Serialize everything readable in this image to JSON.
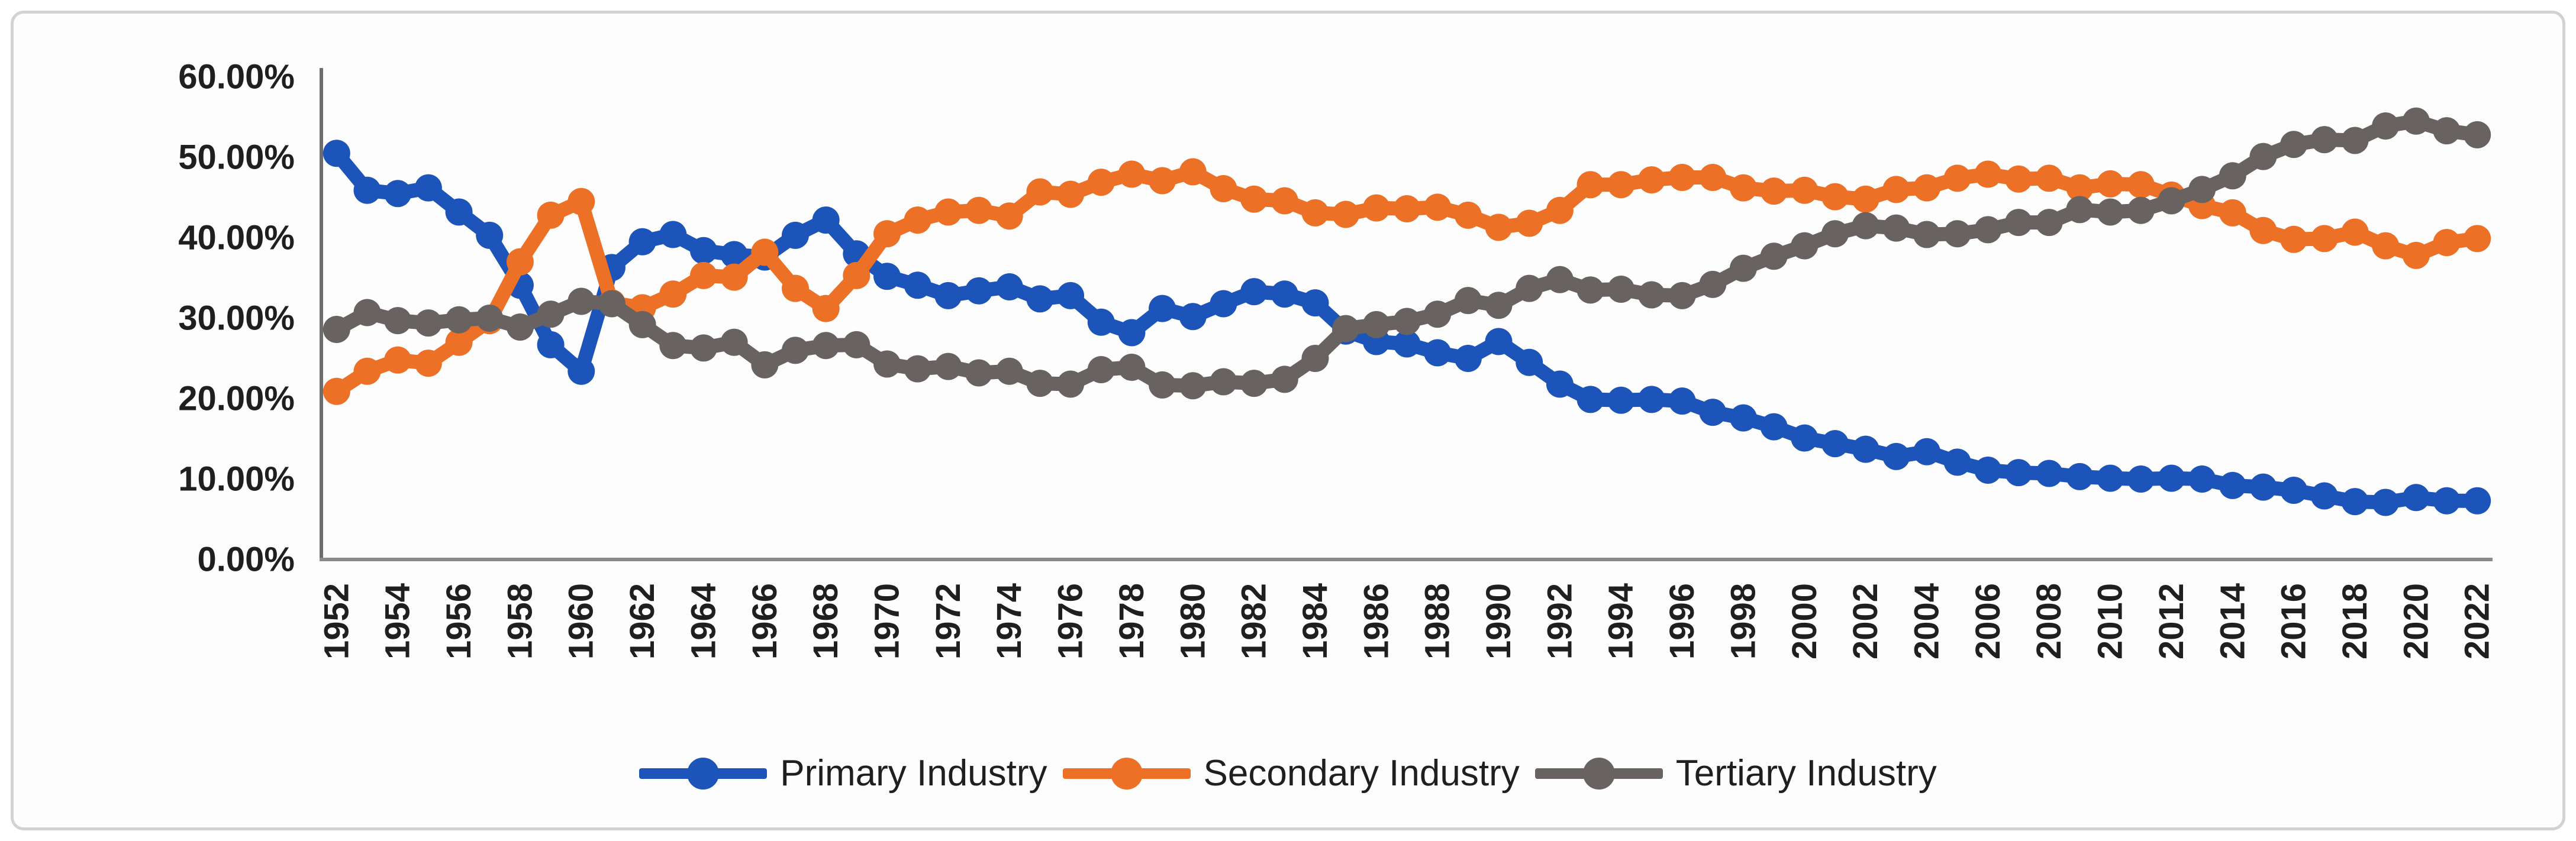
{
  "page": {
    "background": "#ffffff",
    "panel_border_color": "#d2d2d2",
    "panel_background": "#fdfdfd"
  },
  "chart_data": {
    "type": "line",
    "title": "",
    "xlabel": "",
    "ylabel": "",
    "ylim": [
      0,
      60
    ],
    "grid": false,
    "legend_position": "bottom-center",
    "marker_style": "filled-circle",
    "axis_color": "#8a8a8a",
    "y_axis_color": "#6e6e6e",
    "tick_text_color": "#1f1f1f",
    "years": [
      1952,
      1953,
      1954,
      1955,
      1956,
      1957,
      1958,
      1959,
      1960,
      1961,
      1962,
      1963,
      1964,
      1965,
      1966,
      1967,
      1968,
      1969,
      1970,
      1971,
      1972,
      1973,
      1974,
      1975,
      1976,
      1977,
      1978,
      1979,
      1980,
      1981,
      1982,
      1983,
      1984,
      1985,
      1986,
      1987,
      1988,
      1989,
      1990,
      1991,
      1992,
      1993,
      1994,
      1995,
      1996,
      1997,
      1998,
      1999,
      2000,
      2001,
      2002,
      2003,
      2004,
      2005,
      2006,
      2007,
      2008,
      2009,
      2010,
      2011,
      2012,
      2013,
      2014,
      2015,
      2016,
      2017,
      2018,
      2019,
      2020,
      2021,
      2022
    ],
    "x_tick_labels": [
      "1952",
      "1954",
      "1956",
      "1958",
      "1960",
      "1962",
      "1964",
      "1966",
      "1968",
      "1970",
      "1972",
      "1974",
      "1976",
      "1978",
      "1980",
      "1982",
      "1984",
      "1986",
      "1988",
      "1990",
      "1992",
      "1994",
      "1996",
      "1998",
      "2000",
      "2002",
      "2004",
      "2006",
      "2008",
      "2010",
      "2012",
      "2014",
      "2016",
      "2018",
      "2020",
      "2022"
    ],
    "y_ticks": [
      {
        "value": 60,
        "label": "60.00%"
      },
      {
        "value": 50,
        "label": "50.00%"
      },
      {
        "value": 40,
        "label": "40.00%"
      },
      {
        "value": 30,
        "label": "30.00%"
      },
      {
        "value": 20,
        "label": "20.00%"
      },
      {
        "value": 10,
        "label": "10.00%"
      },
      {
        "value": 0,
        "label": "0.00%"
      }
    ],
    "series": [
      {
        "name": "Primary Industry",
        "color": "#1c54ba",
        "values": [
          50.5,
          45.9,
          45.5,
          46.2,
          43.2,
          40.3,
          34.1,
          26.7,
          23.4,
          36.3,
          39.5,
          40.4,
          38.4,
          37.9,
          37.6,
          40.3,
          42.2,
          38.0,
          35.2,
          34.1,
          32.8,
          33.4,
          33.9,
          32.4,
          32.8,
          29.5,
          28.2,
          31.2,
          30.2,
          31.8,
          33.3,
          33.0,
          31.9,
          28.4,
          27.1,
          26.8,
          25.7,
          25.0,
          27.1,
          24.5,
          21.8,
          19.9,
          19.8,
          19.9,
          19.7,
          18.3,
          17.6,
          16.5,
          15.1,
          14.4,
          13.7,
          12.8,
          13.4,
          12.1,
          11.1,
          10.8,
          10.7,
          10.3,
          10.1,
          10.0,
          10.1,
          10.0,
          9.2,
          9.0,
          8.6,
          7.9,
          7.2,
          7.1,
          7.7,
          7.3,
          7.3
        ]
      },
      {
        "name": "Secondary Industry",
        "color": "#ec7127",
        "values": [
          20.9,
          23.4,
          24.8,
          24.4,
          27.0,
          29.7,
          37.0,
          42.8,
          44.5,
          31.9,
          31.3,
          33.0,
          35.3,
          35.1,
          38.2,
          33.7,
          31.2,
          35.3,
          40.5,
          42.2,
          43.2,
          43.4,
          42.7,
          45.7,
          45.4,
          46.9,
          47.9,
          47.1,
          48.2,
          46.1,
          44.8,
          44.6,
          43.1,
          42.9,
          43.7,
          43.6,
          43.8,
          42.8,
          41.3,
          41.8,
          43.4,
          46.6,
          46.6,
          47.2,
          47.5,
          47.5,
          46.2,
          45.8,
          45.9,
          45.1,
          44.8,
          46.0,
          46.2,
          47.4,
          47.9,
          47.3,
          47.4,
          46.2,
          46.7,
          46.6,
          45.3,
          44.0,
          43.1,
          40.9,
          39.8,
          39.9,
          40.7,
          39.0,
          37.8,
          39.4,
          39.9
        ]
      },
      {
        "name": "Tertiary Industry",
        "color": "#686260",
        "values": [
          28.6,
          30.7,
          29.7,
          29.4,
          29.8,
          30.0,
          28.9,
          30.5,
          32.1,
          31.8,
          29.2,
          26.6,
          26.3,
          27.0,
          24.2,
          26.0,
          26.6,
          26.7,
          24.3,
          23.7,
          24.0,
          23.2,
          23.4,
          21.9,
          21.8,
          23.6,
          23.9,
          21.7,
          21.6,
          22.1,
          21.9,
          22.4,
          25.0,
          28.7,
          29.2,
          29.6,
          30.5,
          32.2,
          31.6,
          33.7,
          34.8,
          33.5,
          33.6,
          32.9,
          32.8,
          34.2,
          36.2,
          37.7,
          39.0,
          40.5,
          41.5,
          41.2,
          40.4,
          40.5,
          41.0,
          41.9,
          41.9,
          43.5,
          43.2,
          43.4,
          44.6,
          46.0,
          47.7,
          50.1,
          51.6,
          52.2,
          52.1,
          53.9,
          54.5,
          53.3,
          52.8
        ]
      }
    ]
  }
}
